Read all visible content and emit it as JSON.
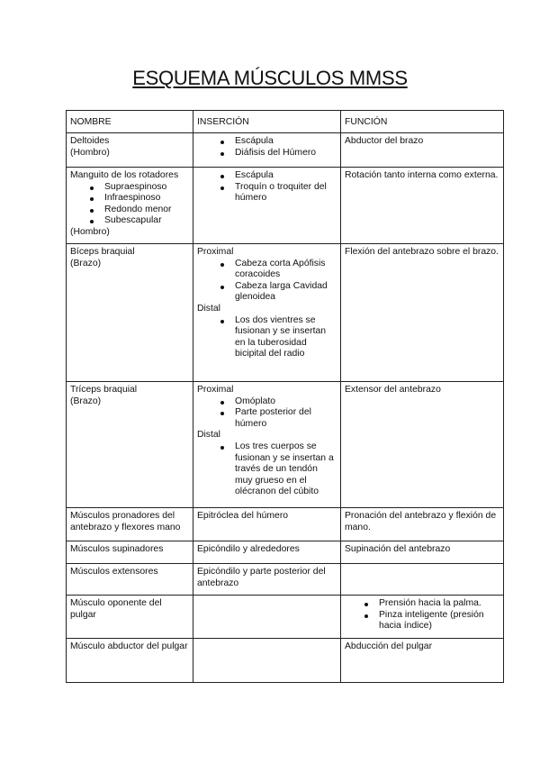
{
  "title": "ESQUEMA MÚSCULOS MMSS",
  "table": {
    "headers": [
      "NOMBRE",
      "INSERCIÓN",
      "FUNCIÓN"
    ],
    "rows": [
      [
        [
          {
            "t": "Deltoides"
          },
          {
            "t": "(Hombro)"
          }
        ],
        [
          {
            "b": [
              "Escápula",
              "Diáfisis del Húmero"
            ]
          }
        ],
        [
          {
            "t": "Abductor del brazo"
          }
        ]
      ],
      [
        [
          {
            "t": "Manguito de los rotadores"
          },
          {
            "b": [
              "Supraespinoso",
              "Infraespinoso",
              "Redondo menor",
              "Subescapular"
            ]
          },
          {
            "t": "(Hombro)"
          }
        ],
        [
          {
            "b": [
              "Escápula",
              "Troquín o troquiter del húmero"
            ]
          }
        ],
        [
          {
            "t": "Rotación tanto interna como externa."
          }
        ]
      ],
      [
        [
          {
            "t": "Bíceps braquial"
          },
          {
            "t": "(Brazo)"
          }
        ],
        [
          {
            "t": "Proximal"
          },
          {
            "b": [
              "Cabeza corta Apófisis coracoides",
              "Cabeza larga Cavidad glenoidea"
            ]
          },
          {
            "t": "Distal"
          },
          {
            "b": [
              "Los dos vientres se fusionan y se insertan en la tuberosidad bicipital del radio"
            ]
          }
        ],
        [
          {
            "t": "Flexión del antebrazo sobre el brazo."
          }
        ]
      ],
      [
        [
          {
            "t": "Tríceps braquial"
          },
          {
            "t": "(Brazo)"
          }
        ],
        [
          {
            "t": "Proximal"
          },
          {
            "b": [
              "Omóplato",
              "Parte posterior del húmero"
            ]
          },
          {
            "t": "Distal"
          },
          {
            "b": [
              "Los tres cuerpos se fusionan y se insertan a través de un tendón muy grueso en el olécranon del cúbito"
            ]
          }
        ],
        [
          {
            "t": "Extensor del antebrazo"
          }
        ]
      ],
      [
        [
          {
            "t": "Músculos pronadores del antebrazo y flexores mano"
          }
        ],
        [
          {
            "t": "Epitróclea del húmero"
          }
        ],
        [
          {
            "t": "Pronación del antebrazo  y flexión de mano."
          }
        ]
      ],
      [
        [
          {
            "t": "Músculos supinadores"
          }
        ],
        [
          {
            "t": "Epicóndilo y alrededores"
          }
        ],
        [
          {
            "t": "Supinación del antebrazo"
          }
        ]
      ],
      [
        [
          {
            "t": "Músculos extensores"
          }
        ],
        [
          {
            "t": "Epicóndilo y parte posterior del antebrazo"
          }
        ],
        []
      ],
      [
        [
          {
            "t": "Músculo oponente del pulgar"
          }
        ],
        [],
        [
          {
            "b": [
              "Prensión hacia la palma.",
              "Pinza inteligente (presión hacia índice)"
            ]
          }
        ]
      ],
      [
        [
          {
            "t": "Músculo abductor del pulgar"
          }
        ],
        [],
        [
          {
            "t": "Abducción del pulgar"
          }
        ]
      ]
    ]
  }
}
